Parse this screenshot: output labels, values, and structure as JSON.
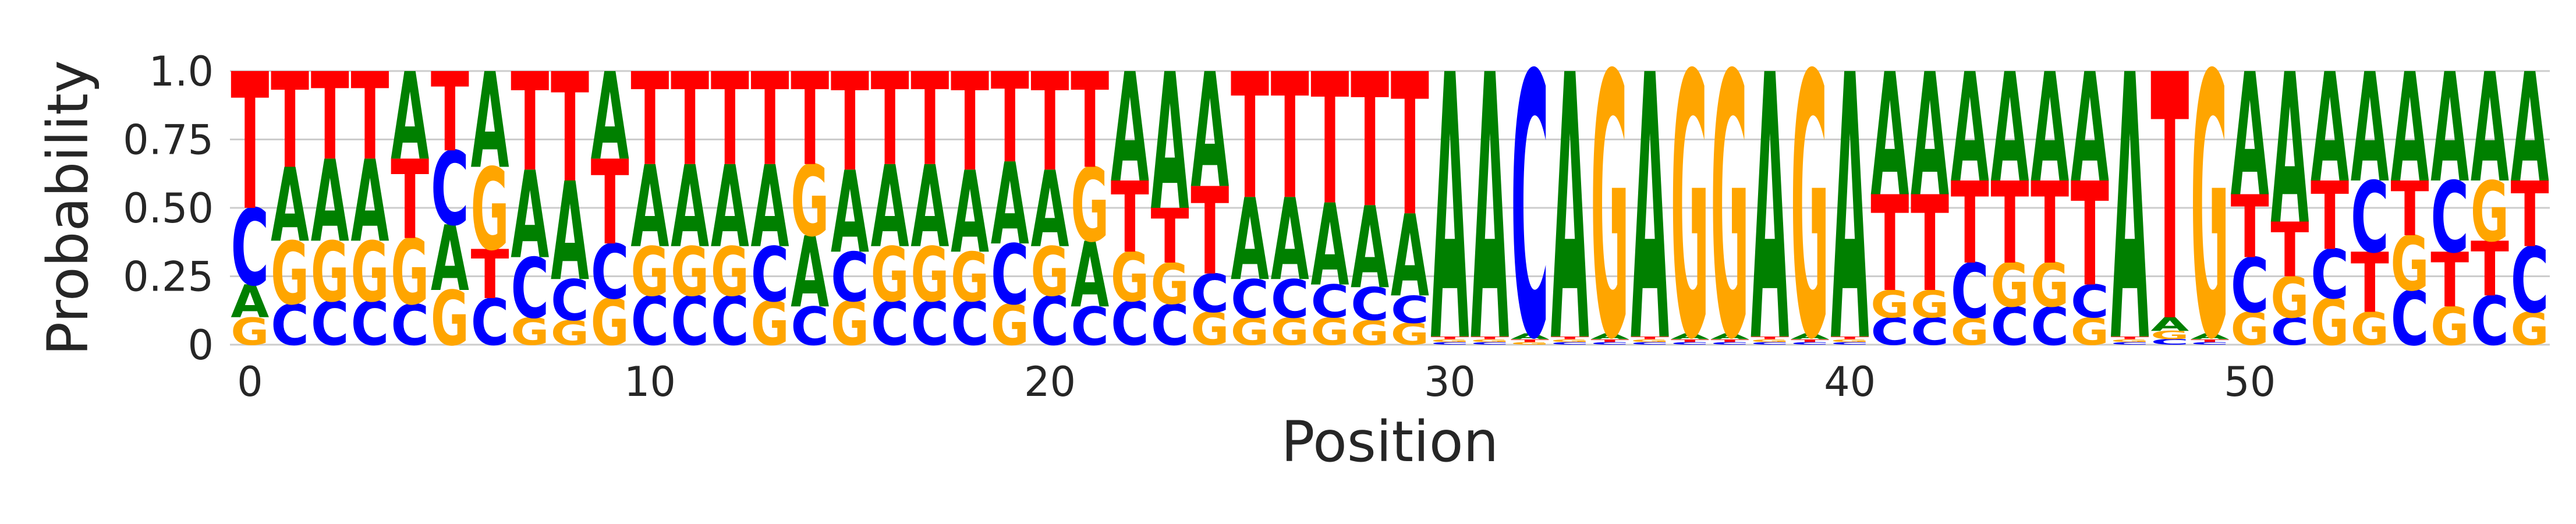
{
  "colors": {
    "A": "#008000",
    "C": "#0000ff",
    "G": "#ffa500",
    "T": "#ff0000"
  },
  "chart_data": {
    "type": "sequence-logo",
    "xlabel": "Position",
    "ylabel": "Probability",
    "ylim": [
      0,
      1
    ],
    "xlim": [
      -0.5,
      57.5
    ],
    "xticks": [
      0,
      10,
      20,
      30,
      40,
      50
    ],
    "yticks": [
      0,
      0.25,
      0.5,
      0.75,
      1.0
    ],
    "ytick_labels": [
      "0",
      "0.25",
      "0.50",
      "0.75",
      "1.0"
    ],
    "grid": true,
    "alphabet": [
      "A",
      "C",
      "G",
      "T"
    ],
    "positions": [
      {
        "A": 0.12,
        "C": 0.28,
        "G": 0.1,
        "T": 0.5
      },
      {
        "A": 0.27,
        "C": 0.15,
        "G": 0.23,
        "T": 0.35
      },
      {
        "A": 0.3,
        "C": 0.16,
        "G": 0.22,
        "T": 0.32
      },
      {
        "A": 0.3,
        "C": 0.16,
        "G": 0.22,
        "T": 0.32
      },
      {
        "A": 0.32,
        "C": 0.15,
        "G": 0.24,
        "T": 0.29
      },
      {
        "A": 0.24,
        "C": 0.27,
        "G": 0.2,
        "T": 0.29
      },
      {
        "A": 0.35,
        "C": 0.17,
        "G": 0.3,
        "T": 0.18
      },
      {
        "A": 0.32,
        "C": 0.22,
        "G": 0.1,
        "T": 0.36
      },
      {
        "A": 0.36,
        "C": 0.15,
        "G": 0.09,
        "T": 0.4
      },
      {
        "A": 0.32,
        "C": 0.2,
        "G": 0.17,
        "T": 0.31
      },
      {
        "A": 0.3,
        "C": 0.18,
        "G": 0.18,
        "T": 0.34
      },
      {
        "A": 0.3,
        "C": 0.18,
        "G": 0.18,
        "T": 0.34
      },
      {
        "A": 0.3,
        "C": 0.18,
        "G": 0.18,
        "T": 0.34
      },
      {
        "A": 0.3,
        "C": 0.2,
        "G": 0.16,
        "T": 0.34
      },
      {
        "A": 0.26,
        "C": 0.14,
        "G": 0.26,
        "T": 0.34
      },
      {
        "A": 0.3,
        "C": 0.18,
        "G": 0.16,
        "T": 0.36
      },
      {
        "A": 0.3,
        "C": 0.16,
        "G": 0.2,
        "T": 0.34
      },
      {
        "A": 0.3,
        "C": 0.16,
        "G": 0.2,
        "T": 0.34
      },
      {
        "A": 0.3,
        "C": 0.16,
        "G": 0.18,
        "T": 0.36
      },
      {
        "A": 0.3,
        "C": 0.22,
        "G": 0.15,
        "T": 0.33
      },
      {
        "A": 0.28,
        "C": 0.18,
        "G": 0.18,
        "T": 0.36
      },
      {
        "A": 0.24,
        "C": 0.14,
        "G": 0.27,
        "T": 0.35
      },
      {
        "A": 0.4,
        "C": 0.16,
        "G": 0.18,
        "T": 0.26
      },
      {
        "A": 0.5,
        "C": 0.15,
        "G": 0.15,
        "T": 0.2
      },
      {
        "A": 0.42,
        "C": 0.14,
        "G": 0.12,
        "T": 0.32
      },
      {
        "A": 0.3,
        "C": 0.14,
        "G": 0.1,
        "T": 0.46
      },
      {
        "A": 0.3,
        "C": 0.14,
        "G": 0.1,
        "T": 0.46
      },
      {
        "A": 0.3,
        "C": 0.12,
        "G": 0.1,
        "T": 0.48
      },
      {
        "A": 0.3,
        "C": 0.12,
        "G": 0.09,
        "T": 0.49
      },
      {
        "A": 0.3,
        "C": 0.1,
        "G": 0.08,
        "T": 0.52
      },
      {
        "A": 0.97,
        "C": 0.01,
        "G": 0.01,
        "T": 0.01
      },
      {
        "A": 0.97,
        "C": 0.01,
        "G": 0.01,
        "T": 0.01
      },
      {
        "A": 0.02,
        "C": 0.96,
        "G": 0.01,
        "T": 0.01
      },
      {
        "A": 0.97,
        "C": 0.01,
        "G": 0.01,
        "T": 0.01
      },
      {
        "A": 0.02,
        "C": 0.01,
        "G": 0.96,
        "T": 0.01
      },
      {
        "A": 0.97,
        "C": 0.01,
        "G": 0.01,
        "T": 0.01
      },
      {
        "A": 0.02,
        "C": 0.01,
        "G": 0.96,
        "T": 0.01
      },
      {
        "A": 0.02,
        "C": 0.01,
        "G": 0.96,
        "T": 0.01
      },
      {
        "A": 0.97,
        "C": 0.01,
        "G": 0.01,
        "T": 0.01
      },
      {
        "A": 0.02,
        "C": 0.01,
        "G": 0.96,
        "T": 0.01
      },
      {
        "A": 0.97,
        "C": 0.01,
        "G": 0.01,
        "T": 0.01
      },
      {
        "A": 0.45,
        "C": 0.1,
        "G": 0.1,
        "T": 0.35
      },
      {
        "A": 0.45,
        "C": 0.1,
        "G": 0.1,
        "T": 0.35
      },
      {
        "A": 0.4,
        "C": 0.2,
        "G": 0.1,
        "T": 0.3
      },
      {
        "A": 0.4,
        "C": 0.14,
        "G": 0.16,
        "T": 0.3
      },
      {
        "A": 0.4,
        "C": 0.14,
        "G": 0.16,
        "T": 0.3
      },
      {
        "A": 0.4,
        "C": 0.12,
        "G": 0.1,
        "T": 0.38
      },
      {
        "A": 0.97,
        "C": 0.01,
        "G": 0.01,
        "T": 0.01
      },
      {
        "A": 0.05,
        "C": 0.02,
        "G": 0.03,
        "T": 0.9
      },
      {
        "A": 0.02,
        "C": 0.01,
        "G": 0.96,
        "T": 0.01
      },
      {
        "A": 0.45,
        "C": 0.2,
        "G": 0.12,
        "T": 0.23
      },
      {
        "A": 0.55,
        "C": 0.1,
        "G": 0.15,
        "T": 0.2
      },
      {
        "A": 0.4,
        "C": 0.18,
        "G": 0.17,
        "T": 0.25
      },
      {
        "A": 0.4,
        "C": 0.26,
        "G": 0.12,
        "T": 0.22
      },
      {
        "A": 0.4,
        "C": 0.2,
        "G": 0.2,
        "T": 0.2
      },
      {
        "A": 0.4,
        "C": 0.26,
        "G": 0.14,
        "T": 0.2
      },
      {
        "A": 0.4,
        "C": 0.18,
        "G": 0.22,
        "T": 0.2
      },
      {
        "A": 0.4,
        "C": 0.24,
        "G": 0.12,
        "T": 0.24
      }
    ]
  }
}
